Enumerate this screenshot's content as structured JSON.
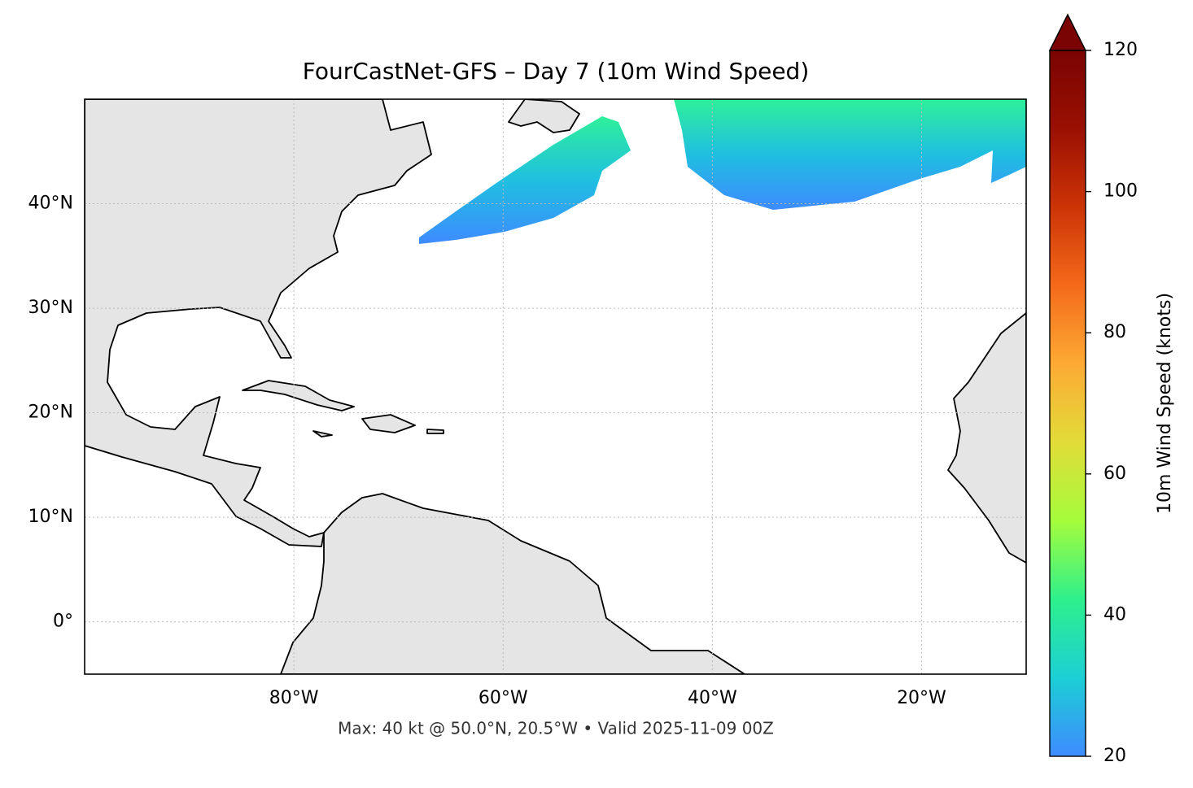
{
  "chart_data": {
    "type": "map",
    "title": "FourCastNet-GFS – Day 7 (10m Wind Speed)",
    "annotation": "Max: 40 kt @ 50.0°N, 20.5°W • Valid 2025-11-09 00Z",
    "xlim": [
      -100,
      -10
    ],
    "ylim": [
      -5,
      50
    ],
    "xticks": [
      {
        "value": -80,
        "label": "80°W"
      },
      {
        "value": -60,
        "label": "60°W"
      },
      {
        "value": -40,
        "label": "40°W"
      },
      {
        "value": -20,
        "label": "20°W"
      }
    ],
    "yticks": [
      {
        "value": 0,
        "label": "0°"
      },
      {
        "value": 10,
        "label": "10°N"
      },
      {
        "value": 20,
        "label": "20°N"
      },
      {
        "value": 30,
        "label": "30°N"
      },
      {
        "value": 40,
        "label": "40°N"
      }
    ],
    "grid": true,
    "colorbar": {
      "label": "10m Wind Speed (knots)",
      "lim": [
        20,
        120
      ],
      "ticks": [
        20,
        40,
        60,
        80,
        100,
        120
      ],
      "colormap": [
        "#3e8bff",
        "#1ccfd5",
        "#2ef08c",
        "#a4fc3b",
        "#e2dc38",
        "#fdaa34",
        "#f46a1a",
        "#cc3406",
        "#9a1002",
        "#7a0403"
      ]
    }
  }
}
